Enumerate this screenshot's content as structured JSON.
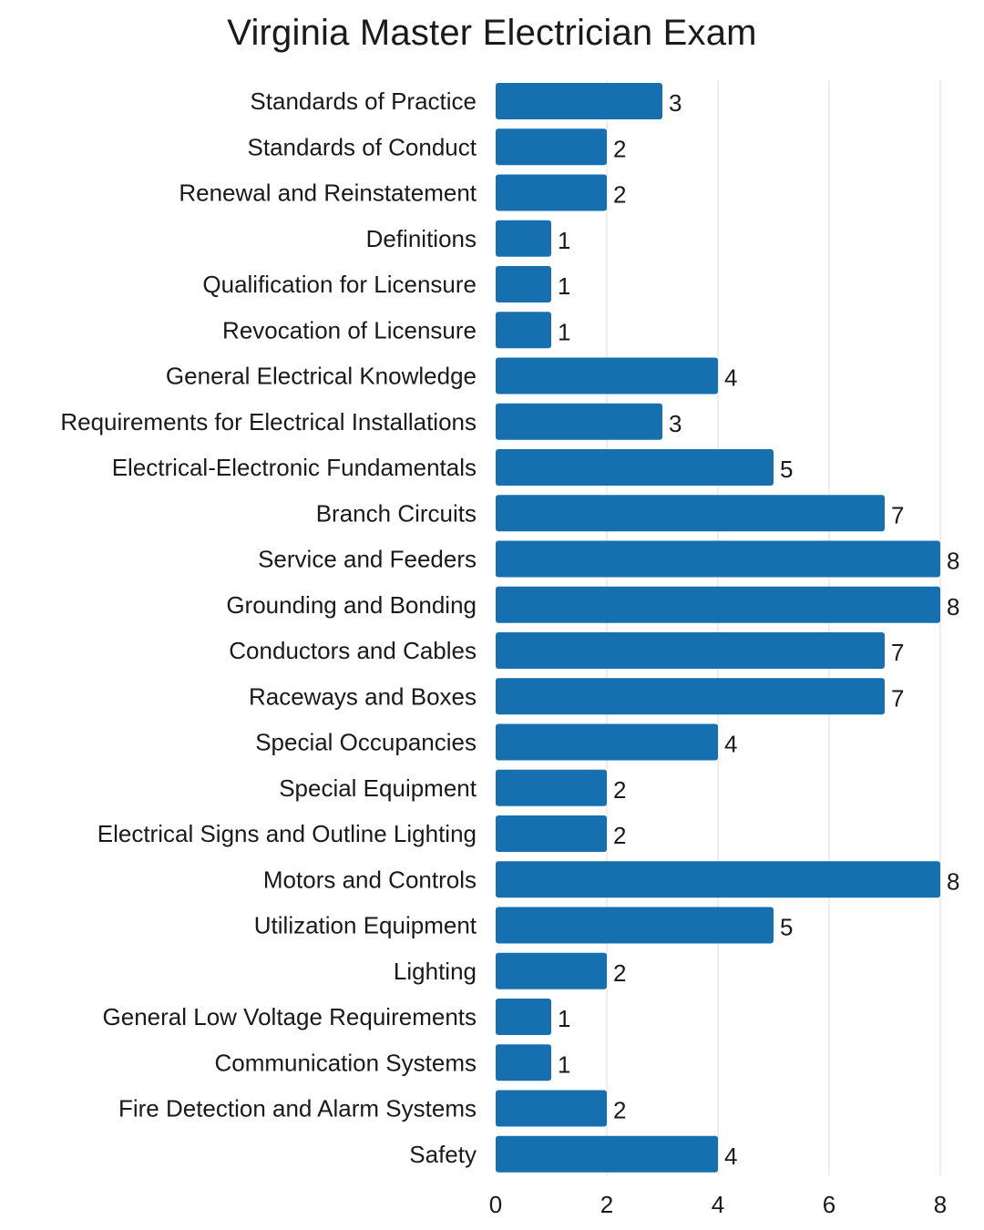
{
  "chart_data": {
    "type": "bar",
    "orientation": "horizontal",
    "title": "Virginia Master Electrician Exam",
    "xlabel": "",
    "ylabel": "",
    "categories": [
      "Standards of Practice",
      "Standards of Conduct",
      "Renewal and Reinstatement",
      "Definitions",
      "Qualification for Licensure",
      "Revocation of Licensure",
      "General Electrical Knowledge",
      "Requirements for Electrical Installations",
      "Electrical-Electronic Fundamentals",
      "Branch Circuits",
      "Service and Feeders",
      "Grounding and Bonding",
      "Conductors and Cables",
      "Raceways and Boxes",
      "Special Occupancies",
      "Special Equipment",
      "Electrical Signs and Outline Lighting",
      "Motors and Controls",
      "Utilization Equipment",
      "Lighting",
      "General Low Voltage Requirements",
      "Communication Systems",
      "Fire Detection and Alarm Systems",
      "Safety"
    ],
    "values": [
      3,
      2,
      2,
      1,
      1,
      1,
      4,
      3,
      5,
      7,
      8,
      8,
      7,
      7,
      4,
      2,
      2,
      8,
      5,
      2,
      1,
      1,
      2,
      4
    ],
    "xlim": [
      0,
      8
    ],
    "xticks": [
      0,
      2,
      4,
      6,
      8
    ],
    "grid": true,
    "data_labels": true,
    "bar_color": "#1670b0",
    "legend": "none"
  }
}
